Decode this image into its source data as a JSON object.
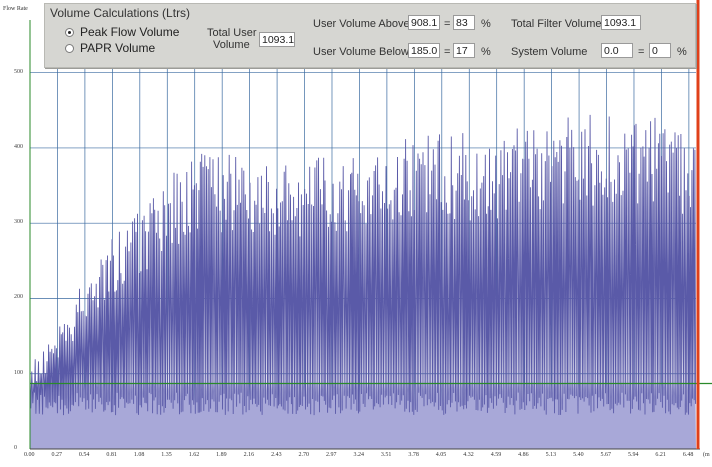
{
  "chart": {
    "ylabel": "Flow Rate",
    "y_ticks": [
      "500",
      "400",
      "300",
      "200",
      "100",
      "0"
    ],
    "x_ticks": [
      "0.00",
      "0.27",
      "0.54",
      "0.81",
      "1.08",
      "1.35",
      "1.62",
      "1.89",
      "2.16",
      "2.43",
      "2.70",
      "2.97",
      "3.24",
      "3.51",
      "3.78",
      "4.05",
      "4.32",
      "4.59",
      "4.86",
      "5.13",
      "5.40",
      "5.67",
      "5.94",
      "6.21",
      "6.48"
    ],
    "x_unit_partial": "(m",
    "colors": {
      "line": "#5a5aa8",
      "fill": "#a8a8d8",
      "grid": "#3a6aa0",
      "threshold": "#2a8a2a",
      "axis": "#2a8a2a",
      "right_edge": "#e0401a"
    }
  },
  "panel": {
    "title": "Volume Calculations (Ltrs)",
    "radio_peak": "Peak Flow Volume",
    "radio_papr": "PAPR Volume",
    "total_user_label_1": "Total User",
    "total_user_label_2": "Volume",
    "total_user_value": "1093.1",
    "above_label": "User Volume Above",
    "above_value": "908.1",
    "above_pct": "83",
    "below_label": "User Volume Below",
    "below_value": "185.0",
    "below_pct": "17",
    "eq": "=",
    "pct": "%",
    "total_filter_label": "Total Filter Volume",
    "total_filter_value": "1093.1",
    "system_label": "System Volume",
    "system_value": "0.0",
    "system_pct": "0"
  },
  "chart_data": {
    "type": "line",
    "ylabel": "Flow Rate",
    "x": [
      0.0,
      0.27,
      0.54,
      0.81,
      1.08,
      1.35,
      1.62,
      1.89,
      2.16,
      2.43,
      2.7,
      2.97,
      3.24,
      3.51,
      3.78,
      4.05,
      4.32,
      4.59,
      4.86,
      5.13,
      5.4,
      5.67,
      5.94,
      6.21,
      6.48
    ],
    "series": [
      {
        "values": [
          110,
          160,
          230,
          280,
          320,
          360,
          390,
          400,
          400,
          395,
          390,
          395,
          400,
          410,
          420,
          420,
          420,
          425,
          430,
          440,
          445,
          445,
          440,
          440,
          430
        ]
      }
    ],
    "threshold": 87,
    "ylim": [
      0,
      570
    ],
    "xlim": [
      0,
      6.55
    ]
  }
}
